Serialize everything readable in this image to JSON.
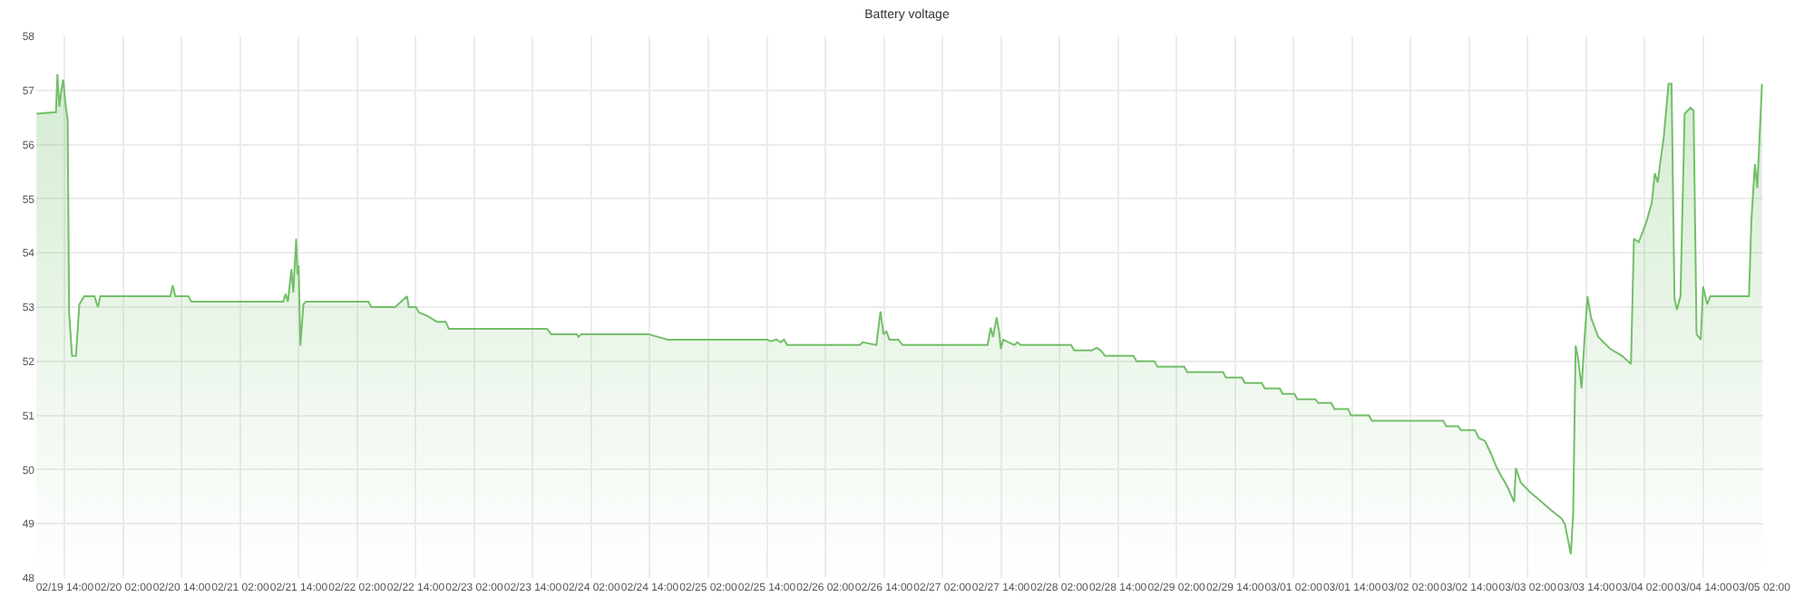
{
  "chart_data": {
    "type": "area",
    "title": "Battery voltage",
    "xlim": [
      "--02-19T08:10",
      "--03-05T02:20"
    ],
    "xticks": [
      {
        "value": "--02-19T14:00",
        "label": "02/19 14:00"
      },
      {
        "value": "--02-20T02:00",
        "label": "02/20 02:00"
      },
      {
        "value": "--02-20T14:00",
        "label": "02/20 14:00"
      },
      {
        "value": "--02-21T02:00",
        "label": "02/21 02:00"
      },
      {
        "value": "--02-21T14:00",
        "label": "02/21 14:00"
      },
      {
        "value": "--02-22T02:00",
        "label": "02/22 02:00"
      },
      {
        "value": "--02-22T14:00",
        "label": "02/22 14:00"
      },
      {
        "value": "--02-23T02:00",
        "label": "02/23 02:00"
      },
      {
        "value": "--02-23T14:00",
        "label": "02/23 14:00"
      },
      {
        "value": "--02-24T02:00",
        "label": "02/24 02:00"
      },
      {
        "value": "--02-24T14:00",
        "label": "02/24 14:00"
      },
      {
        "value": "--02-25T02:00",
        "label": "02/25 02:00"
      },
      {
        "value": "--02-25T14:00",
        "label": "02/25 14:00"
      },
      {
        "value": "--02-26T02:00",
        "label": "02/26 02:00"
      },
      {
        "value": "--02-26T14:00",
        "label": "02/26 14:00"
      },
      {
        "value": "--02-27T02:00",
        "label": "02/27 02:00"
      },
      {
        "value": "--02-27T14:00",
        "label": "02/27 14:00"
      },
      {
        "value": "--02-28T02:00",
        "label": "02/28 02:00"
      },
      {
        "value": "--02-28T14:00",
        "label": "02/28 14:00"
      },
      {
        "value": "--02-29T02:00",
        "label": "02/29 02:00"
      },
      {
        "value": "--02-29T14:00",
        "label": "02/29 14:00"
      },
      {
        "value": "--03-01T02:00",
        "label": "03/01 02:00"
      },
      {
        "value": "--03-01T14:00",
        "label": "03/01 14:00"
      },
      {
        "value": "--03-02T02:00",
        "label": "03/02 02:00"
      },
      {
        "value": "--03-02T14:00",
        "label": "03/02 14:00"
      },
      {
        "value": "--03-03T02:00",
        "label": "03/03 02:00"
      },
      {
        "value": "--03-03T14:00",
        "label": "03/03 14:00"
      },
      {
        "value": "--03-04T02:00",
        "label": "03/04 02:00"
      },
      {
        "value": "--03-04T14:00",
        "label": "03/04 14:00"
      },
      {
        "value": "--03-05T02:00",
        "label": "03/05 02:00"
      }
    ],
    "ylim": [
      48,
      58
    ],
    "yticks": [
      48,
      49,
      50,
      51,
      52,
      53,
      54,
      55,
      56,
      57,
      58
    ],
    "grid": true,
    "series": [
      {
        "color": "#73bf69",
        "x": [
          "--02-19T08:12",
          "--02-19T12:12",
          "--02-19T12:30",
          "--02-19T12:54",
          "--02-19T13:18",
          "--02-19T13:42",
          "--02-19T14:06",
          "--02-19T14:36",
          "--02-19T14:54",
          "--02-19T15:30",
          "--02-19T16:18",
          "--02-19T17:00",
          "--02-19T18:00",
          "--02-19T20:06",
          "--02-19T20:48",
          "--02-19T21:18",
          "--02-20T11:40",
          "--02-20T12:10",
          "--02-20T12:40",
          "--02-20T15:20",
          "--02-20T16:00",
          "--02-21T10:48",
          "--02-21T11:17",
          "--02-21T11:46",
          "--02-21T12:30",
          "--02-21T12:53",
          "--02-21T13:28",
          "--02-21T13:44",
          "--02-21T13:58",
          "--02-21T14:20",
          "--02-21T14:57",
          "--02-21T15:28",
          "--02-22T04:17",
          "--02-22T04:52",
          "--02-22T09:46",
          "--02-22T12:12",
          "--02-22T12:34",
          "--02-22T14:02",
          "--02-22T14:39",
          "--02-22T16:29",
          "--02-22T18:19",
          "--02-22T20:09",
          "--02-22T20:46",
          "--02-23T16:55",
          "--02-23T17:46",
          "--02-23T23:00",
          "--02-23T23:22",
          "--02-23T23:53",
          "--02-24T13:40",
          "--02-24T17:41",
          "--02-25T14:06",
          "--02-25T14:43",
          "--02-25T16:00",
          "--02-25T16:50",
          "--02-25T17:30",
          "--02-25T18:08",
          "--02-26T09:03",
          "--02-26T09:40",
          "--02-26T12:27",
          "--02-26T12:56",
          "--02-26T13:18",
          "--02-26T13:55",
          "--02-26T14:32",
          "--02-26T15:08",
          "--02-26T16:58",
          "--02-26T17:50",
          "--02-27T11:17",
          "--02-27T11:54",
          "--02-27T12:23",
          "--02-27T13:07",
          "--02-27T13:37",
          "--02-27T13:59",
          "--02-27T14:28",
          "--02-27T15:34",
          "--02-27T16:47",
          "--02-27T17:24",
          "--02-27T18:01",
          "--02-28T04:24",
          "--02-28T05:00",
          "--02-28T08:40",
          "--02-28T09:38",
          "--02-28T10:29",
          "--02-28T11:20",
          "--02-28T17:11",
          "--02-28T17:48",
          "--02-28T21:28",
          "--02-28T22:05",
          "--02-29T03:36",
          "--02-29T04:12",
          "--02-29T11:32",
          "--02-29T12:08",
          "--02-29T15:26",
          "--02-29T16:02",
          "--02-29T19:29",
          "--02-29T20:06",
          "--02-29T23:10",
          "--02-29T23:46",
          "--03-01T02:12",
          "--03-01T02:48",
          "--03-01T06:28",
          "--03-01T07:05",
          "--03-01T09:46",
          "--03-01T10:23",
          "--03-01T13:12",
          "--03-01T13:48",
          "--03-01T17:28",
          "--03-01T18:05",
          "--03-02T08:43",
          "--03-02T09:20",
          "--03-02T11:46",
          "--03-02T12:22",
          "--03-02T15:12",
          "--03-02T16:02",
          "--03-02T17:16",
          "--03-02T18:29",
          "--03-02T19:42",
          "--03-02T20:41",
          "--03-02T21:25",
          "--03-02T22:09",
          "--03-02T23:15",
          "--03-02T23:37",
          "--03-03T00:37",
          "--03-03T02:27",
          "--03-03T04:17",
          "--03-03T06:44",
          "--03-03T08:56",
          "--03-03T09:40",
          "--03-03T10:53",
          "--03-03T11:22",
          "--03-03T11:52",
          "--03-03T12:21",
          "--03-03T13:05",
          "--03-03T13:41",
          "--03-03T14:18",
          "--03-03T15:02",
          "--03-03T16:30",
          "--03-03T18:57",
          "--03-03T21:23",
          "--03-03T23:13",
          "--03-03T23:49",
          "--03-04T00:48",
          "--03-04T02:16",
          "--03-04T03:29",
          "--03-04T04:06",
          "--03-04T04:43",
          "--03-04T05:20",
          "--03-04T05:56",
          "--03-04T06:55",
          "--03-04T07:32",
          "--03-04T08:08",
          "--03-04T08:38",
          "--03-04T09:22",
          "--03-04T10:13",
          "--03-04T11:26",
          "--03-04T12:03",
          "--03-04T12:40",
          "--03-04T13:31",
          "--03-04T14:00",
          "--03-04T14:51",
          "--03-04T15:28",
          "--03-04T23:25",
          "--03-04T23:54",
          "--03-05T00:38",
          "--03-05T01:07",
          "--03-05T02:05"
        ],
        "values": [
          56.57,
          56.6,
          57.3,
          56.7,
          57.0,
          57.2,
          56.8,
          56.46,
          52.9,
          52.1,
          52.1,
          53.05,
          53.2,
          53.2,
          53.0,
          53.2,
          53.2,
          53.4,
          53.2,
          53.2,
          53.1,
          53.1,
          53.24,
          53.1,
          53.7,
          53.27,
          54.26,
          53.6,
          53.77,
          52.29,
          53.05,
          53.1,
          53.1,
          53.0,
          53.0,
          53.2,
          53.0,
          53.0,
          52.9,
          52.83,
          52.73,
          52.73,
          52.6,
          52.6,
          52.5,
          52.5,
          52.45,
          52.5,
          52.5,
          52.4,
          52.4,
          52.37,
          52.4,
          52.35,
          52.4,
          52.3,
          52.3,
          52.35,
          52.3,
          52.66,
          52.92,
          52.5,
          52.55,
          52.4,
          52.4,
          52.3,
          52.3,
          52.62,
          52.45,
          52.81,
          52.55,
          52.23,
          52.4,
          52.35,
          52.3,
          52.35,
          52.3,
          52.3,
          52.2,
          52.2,
          52.25,
          52.2,
          52.1,
          52.1,
          52.0,
          52.0,
          51.9,
          51.9,
          51.8,
          51.8,
          51.7,
          51.7,
          51.6,
          51.6,
          51.5,
          51.5,
          51.4,
          51.4,
          51.3,
          51.3,
          51.23,
          51.23,
          51.12,
          51.12,
          51.0,
          51.0,
          50.9,
          50.9,
          50.8,
          50.8,
          50.73,
          50.73,
          50.58,
          50.53,
          50.3,
          50.03,
          49.87,
          49.76,
          49.63,
          49.4,
          50.03,
          49.76,
          49.59,
          49.45,
          49.26,
          49.1,
          48.99,
          48.44,
          49.2,
          52.29,
          52.07,
          51.5,
          52.4,
          53.2,
          52.8,
          52.45,
          52.23,
          52.1,
          51.95,
          54.26,
          54.2,
          54.54,
          54.92,
          55.47,
          55.3,
          55.75,
          56.13,
          57.12,
          57.12,
          53.16,
          52.95,
          53.2,
          56.57,
          56.68,
          56.63,
          52.5,
          52.4,
          53.38,
          53.05,
          53.2,
          53.2,
          54.59,
          55.64,
          55.2,
          57.12
        ]
      }
    ]
  }
}
